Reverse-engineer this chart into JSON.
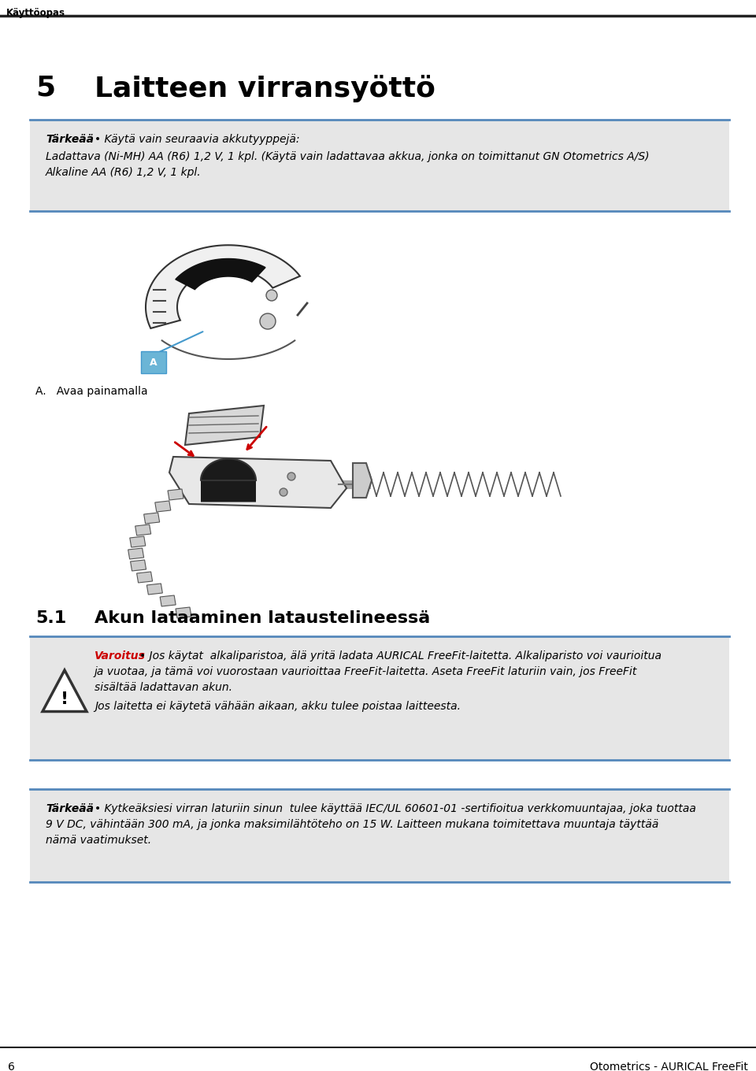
{
  "bg_color": "#ffffff",
  "header_text": "Käyttöopas",
  "header_line_color": "#222222",
  "chapter_number": "5",
  "chapter_title": "Laitteen virransyöttö",
  "important_box_bg": "#e6e6e6",
  "important_box_border": "#5588bb",
  "important_label": "Tärkeää",
  "important_bullet": "•",
  "important_line1": "Käytä vain seuraavia akkutyyppejä:",
  "important_line2": "Ladattava (Ni-MH) AA (R6) 1,2 V, 1 kpl. (Käytä vain ladattavaa akkua, jonka on toimittanut GN Otometrics A/S)",
  "important_line3": "Alkaline AA (R6) 1,2 V, 1 kpl.",
  "figure_a_caption": "A.   Avaa painamalla",
  "section_number": "5.1",
  "section_title": "Akun lataaminen lataustelineessä",
  "warning_box_bg": "#e6e6e6",
  "warning_box_border": "#5588bb",
  "warning_label": "Varoitus",
  "warning_bullet": "•",
  "warning_line1": "Jos käytat  alkaliparistoa, älä yritä ladata AURICAL FreeFit-laitetta. Alkaliparisto voi vaurioitua",
  "warning_line2": "ja vuotaa, ja tämä voi vuorostaan vaurioittaa FreeFit-laitetta. Aseta FreeFit laturiin vain, jos FreeFit",
  "warning_line3": "sisältää ladattavan akun.",
  "warning_line4": "Jos laitetta ei käytetä vähään aikaan, akku tulee poistaa laitteesta.",
  "important2_label": "Tärkeää",
  "important2_bullet": "•",
  "important2_line1": "Kytkeäksiesi virran laturiin sinun  tulee käyttää IEC/UL 60601-01 -sertifioitua verkkomuuntajaa, joka tuottaa",
  "important2_line2": "9 V DC, vähintään 300 mA, ja jonka maksimilähtöteho on 15 W. Laitteen mukana toimitettava muuntaja täyttää",
  "important2_line3": "nämä vaatimukset.",
  "footer_line_color": "#222222",
  "footer_page": "6",
  "footer_right": "Otometrics - AURICAL FreeFit"
}
